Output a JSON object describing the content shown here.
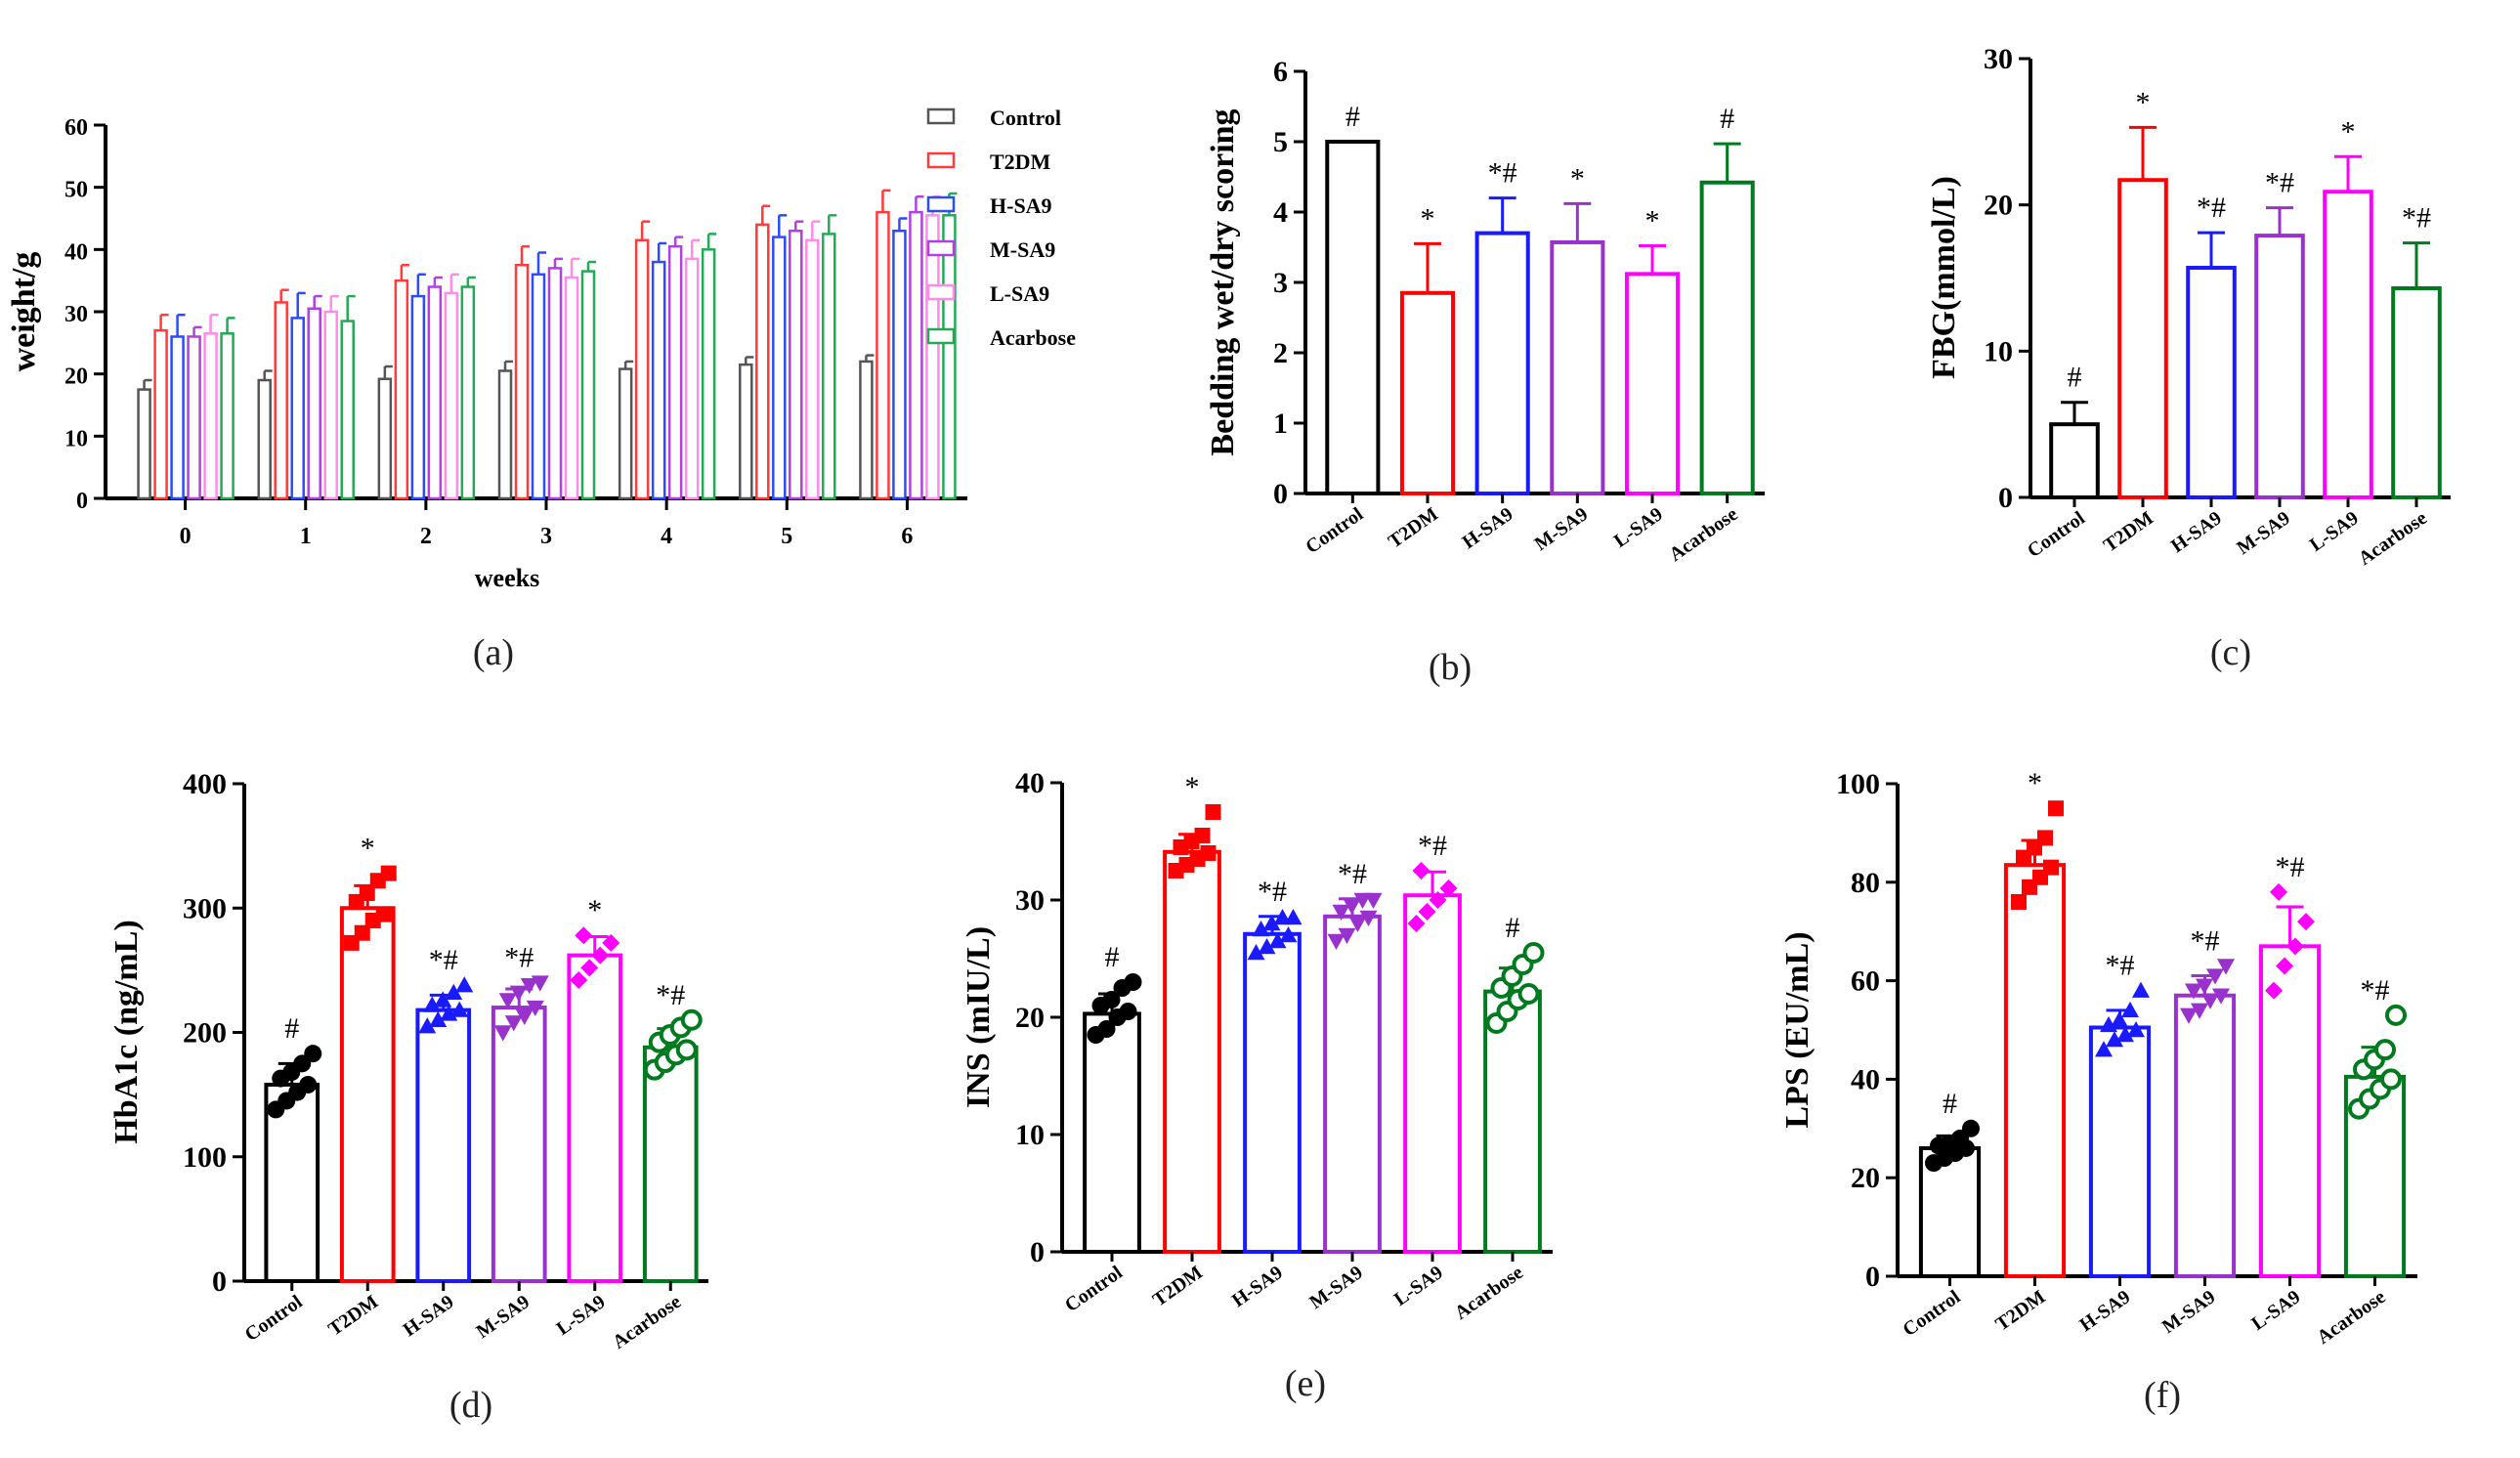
{
  "chart_data": [
    {
      "panel": "(a)",
      "type": "bar",
      "xlabel": "weeks",
      "ylabel": "weight/g",
      "ylim": [
        0,
        60
      ],
      "yticks": [
        0,
        10,
        20,
        30,
        40,
        50,
        60
      ],
      "categories": [
        "0",
        "1",
        "2",
        "3",
        "4",
        "5",
        "6"
      ],
      "legend_position": "right",
      "series": [
        {
          "name": "Control",
          "color": "#555555",
          "values": [
            17.5,
            19,
            19.2,
            20.5,
            20.8,
            21.5,
            22
          ],
          "errors": [
            1.5,
            1.5,
            2,
            1.5,
            1.2,
            1.2,
            1
          ]
        },
        {
          "name": "T2DM",
          "color": "#ff3b3b",
          "values": [
            27,
            31.5,
            35,
            37.5,
            41.5,
            44,
            46
          ],
          "errors": [
            2.5,
            2,
            2.5,
            3,
            3,
            3,
            3.5
          ]
        },
        {
          "name": "H-SA9",
          "color": "#2b4bff",
          "values": [
            26,
            29,
            32.5,
            36,
            38,
            42,
            43
          ],
          "errors": [
            3.5,
            4,
            3.5,
            3.5,
            3,
            3.5,
            2
          ]
        },
        {
          "name": "M-SA9",
          "color": "#b040e0",
          "values": [
            26,
            30.5,
            34,
            37,
            40.5,
            43,
            46
          ],
          "errors": [
            1.5,
            2,
            1.5,
            1.5,
            1.5,
            1.5,
            2.5
          ]
        },
        {
          "name": "L-SA9",
          "color": "#ff8ce8",
          "values": [
            26.5,
            30,
            33,
            35.5,
            38.5,
            41.5,
            45.5
          ],
          "errors": [
            3,
            2.5,
            3,
            3,
            3,
            3,
            3
          ]
        },
        {
          "name": "Acarbose",
          "color": "#22aa55",
          "values": [
            26.5,
            28.5,
            34,
            36.5,
            40,
            42.5,
            45.5
          ],
          "errors": [
            2.5,
            4,
            1.5,
            1.5,
            2.5,
            3,
            3.5
          ]
        }
      ]
    },
    {
      "panel": "(b)",
      "type": "bar",
      "xlabel": "",
      "ylabel": "Bedding wet/dry scoring",
      "ylim": [
        0,
        6
      ],
      "yticks": [
        0,
        1,
        2,
        3,
        4,
        5,
        6
      ],
      "categories": [
        "Control",
        "T2DM",
        "H-SA9",
        "M-SA9",
        "L-SA9",
        "Acarbose"
      ],
      "colors": [
        "#000000",
        "#ff0000",
        "#1a1aff",
        "#9932cc",
        "#ff00ff",
        "#007a1f"
      ],
      "values": [
        5.0,
        2.85,
        3.7,
        3.57,
        3.12,
        4.42
      ],
      "errors": [
        0,
        0.7,
        0.5,
        0.55,
        0.4,
        0.55
      ],
      "annotations": [
        "#",
        "*",
        "*#",
        "*",
        "*",
        "#"
      ]
    },
    {
      "panel": "(c)",
      "type": "bar",
      "xlabel": "",
      "ylabel": "FBG(mmol/L)",
      "ylim": [
        0,
        30
      ],
      "yticks": [
        0,
        10,
        20,
        30
      ],
      "categories": [
        "Control",
        "T2DM",
        "H-SA9",
        "M-SA9",
        "L-SA9",
        "Acarbose"
      ],
      "colors": [
        "#000000",
        "#ff0000",
        "#1a1aff",
        "#9932cc",
        "#ff00ff",
        "#007a1f"
      ],
      "values": [
        5.0,
        21.7,
        15.7,
        17.9,
        20.9,
        14.3
      ],
      "errors": [
        1.5,
        3.6,
        2.4,
        1.9,
        2.4,
        3.1
      ],
      "annotations": [
        "#",
        "*",
        "*#",
        "*#",
        "*",
        "*#"
      ]
    },
    {
      "panel": "(d)",
      "type": "bar",
      "xlabel": "",
      "ylabel": "HbA1c (ng/mL)",
      "ylim": [
        0,
        400
      ],
      "yticks": [
        0,
        100,
        200,
        300,
        400
      ],
      "categories": [
        "Control",
        "T2DM",
        "H-SA9",
        "M-SA9",
        "L-SA9",
        "Acarbose"
      ],
      "colors": [
        "#000000",
        "#ff0000",
        "#1a1aff",
        "#9932cc",
        "#ff00ff",
        "#007a1f"
      ],
      "values": [
        158,
        300,
        218,
        220,
        262,
        188
      ],
      "errors": [
        17,
        18,
        12,
        15,
        15,
        15
      ],
      "annotations": [
        "#",
        "*",
        "*#",
        "*#",
        "*",
        "*#"
      ],
      "points": [
        [
          138,
          145,
          152,
          158,
          163,
          168,
          175,
          183
        ],
        [
          272,
          280,
          290,
          295,
          305,
          312,
          322,
          328
        ],
        [
          205,
          210,
          215,
          218,
          222,
          226,
          232,
          238
        ],
        [
          200,
          208,
          213,
          220,
          226,
          232,
          238,
          240
        ],
        [
          242,
          252,
          262,
          272,
          278
        ],
        [
          170,
          176,
          182,
          186,
          192,
          198,
          204,
          210
        ]
      ]
    },
    {
      "panel": "(e)",
      "type": "bar",
      "xlabel": "",
      "ylabel": "INS (mIU/L)",
      "ylim": [
        0,
        40
      ],
      "yticks": [
        0,
        10,
        20,
        30,
        40
      ],
      "categories": [
        "Control",
        "T2DM",
        "H-SA9",
        "M-SA9",
        "L-SA9",
        "Acarbose"
      ],
      "colors": [
        "#000000",
        "#ff0000",
        "#1a1aff",
        "#9932cc",
        "#ff00ff",
        "#007a1f"
      ],
      "values": [
        20.3,
        34.1,
        27.1,
        28.6,
        30.4,
        22.2
      ],
      "errors": [
        1.7,
        1.5,
        1.5,
        1.5,
        2.0,
        2.0
      ],
      "annotations": [
        "#",
        "*",
        "*#",
        "*#",
        "*#",
        "#"
      ],
      "points": [
        [
          18.5,
          19,
          20,
          20.5,
          21,
          21.5,
          22.5,
          23
        ],
        [
          32.5,
          33,
          33.5,
          34,
          34.5,
          35,
          35.5,
          37.5
        ],
        [
          25.5,
          26,
          26.5,
          27,
          27.5,
          28,
          28.5,
          28.5
        ],
        [
          26.5,
          27,
          28,
          28.5,
          29,
          29.5,
          30,
          30
        ],
        [
          28,
          29,
          30,
          31,
          32.5
        ],
        [
          19.5,
          20.5,
          21.5,
          22,
          22.5,
          23.5,
          24.5,
          25.5
        ]
      ]
    },
    {
      "panel": "(f)",
      "type": "bar",
      "xlabel": "",
      "ylabel": "LPS (EU/mL)",
      "ylim": [
        0,
        100
      ],
      "yticks": [
        0,
        20,
        40,
        60,
        80,
        100
      ],
      "categories": [
        "Control",
        "T2DM",
        "H-SA9",
        "M-SA9",
        "L-SA9",
        "Acarbose"
      ],
      "colors": [
        "#000000",
        "#ff0000",
        "#1a1aff",
        "#9932cc",
        "#ff00ff",
        "#007a1f"
      ],
      "values": [
        26,
        83.5,
        50.5,
        57,
        67,
        40.5
      ],
      "errors": [
        2.5,
        5,
        3.5,
        4,
        8,
        6
      ],
      "annotations": [
        "#",
        "*",
        "*#",
        "*#",
        "*#",
        "*#"
      ],
      "points": [
        [
          23,
          24,
          25,
          26,
          26.5,
          27,
          28,
          30
        ],
        [
          76,
          79,
          81,
          83,
          85,
          87,
          89,
          95
        ],
        [
          46,
          48,
          49,
          50,
          51,
          52,
          54,
          58
        ],
        [
          53,
          54,
          56,
          57,
          58,
          59,
          61,
          63
        ],
        [
          58,
          63,
          67,
          72,
          78
        ],
        [
          34,
          36,
          38,
          40,
          42,
          44,
          46,
          53
        ]
      ]
    }
  ]
}
